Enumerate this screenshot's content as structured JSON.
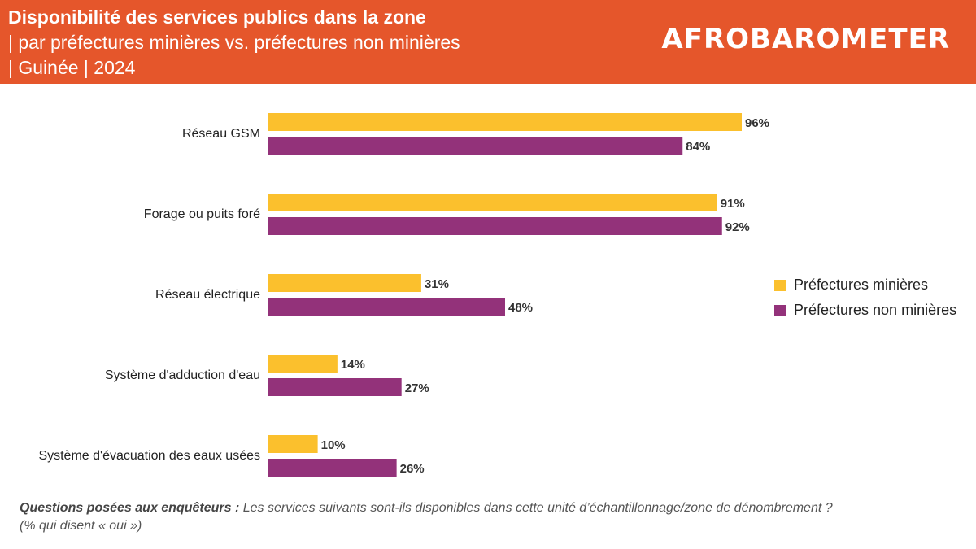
{
  "header": {
    "title_line1": "Disponibilité des services publics dans la zone",
    "title_line2": "| par préfectures minières vs. préfectures non minières",
    "title_line3": "| Guinée | 2024",
    "logo_text": "AFROBAROMETER"
  },
  "colors": {
    "header": "#E5562B",
    "mining": "#FBC02D",
    "non_mining": "#93327A"
  },
  "chart_data": {
    "type": "bar",
    "orientation": "horizontal",
    "categories": [
      "Réseau GSM",
      "Forage ou puits foré",
      "Réseau électrique",
      "Système d'adduction d'eau",
      "Système d'évacuation des eaux usées"
    ],
    "series": [
      {
        "name": "Préfectures minières",
        "values": [
          96,
          91,
          31,
          14,
          10
        ]
      },
      {
        "name": "Préfectures non minières",
        "values": [
          84,
          92,
          48,
          27,
          26
        ]
      }
    ],
    "xlim": [
      0,
      100
    ],
    "value_suffix": "%",
    "legend_position": "right"
  },
  "note": {
    "label": "Questions posées aux enquêteurs :",
    "text": " Les services suivants sont-ils disponibles dans cette unité d’échantillonnage/zone de dénombrement ?",
    "line2": "(% qui disent « oui »)"
  }
}
